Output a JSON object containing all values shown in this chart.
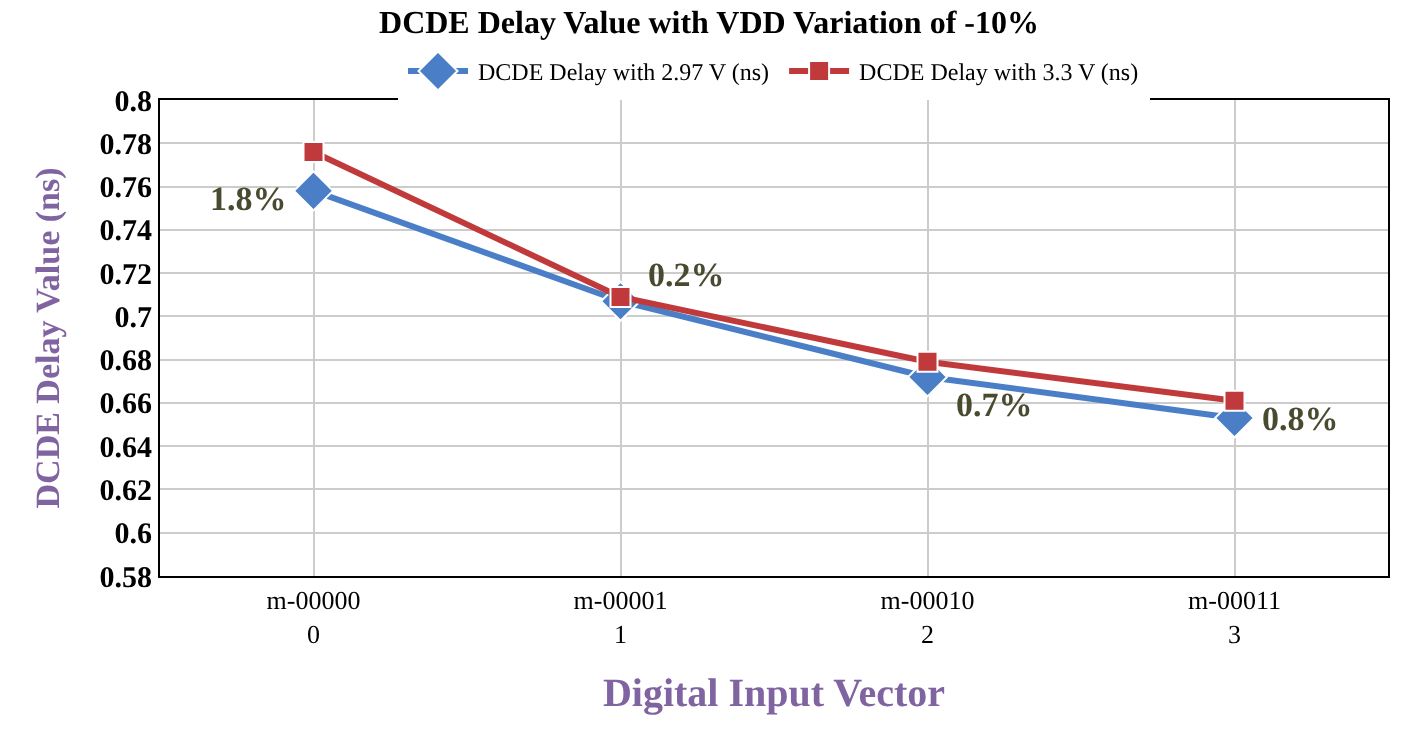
{
  "chart_data": {
    "type": "line",
    "title": "DCDE Delay Value with VDD Variation of -10%",
    "xlabel": "Digital Input Vector",
    "ylabel": "DCDE Delay Value (ns)",
    "categories": [
      "m-00000\n0",
      "m-00001\n1",
      "m-00010\n2",
      "m-00011\n3"
    ],
    "series": [
      {
        "name": "DCDE Delay with 2.97 V (ns)",
        "color": "#4a7fc8",
        "values": [
          0.758,
          0.707,
          0.672,
          0.653
        ],
        "marker": "diamond"
      },
      {
        "name": "DCDE Delay with 3.3 V (ns)",
        "color": "#c0393b",
        "values": [
          0.776,
          0.709,
          0.679,
          0.661
        ],
        "marker": "square"
      }
    ],
    "ylim": [
      0.58,
      0.8
    ],
    "yticks": [
      0.58,
      0.6,
      0.62,
      0.64,
      0.66,
      0.68,
      0.7,
      0.72,
      0.74,
      0.76,
      0.78,
      0.8
    ],
    "grid": true,
    "legend": "top",
    "line_style": "solid",
    "annotations": [
      "1.8%",
      "0.2%",
      "0.7%",
      "0.8%"
    ]
  }
}
